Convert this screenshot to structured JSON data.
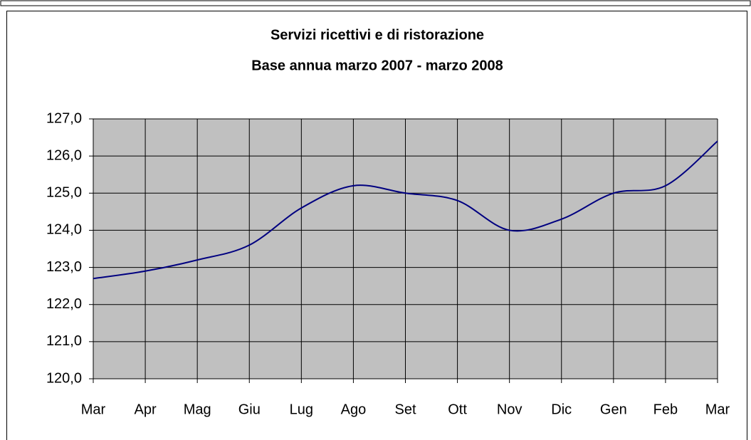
{
  "chart_data": {
    "type": "line",
    "title": "Servizi ricettivi e di ristorazione",
    "subtitle": "Base annua marzo 2007 - marzo 2008",
    "categories": [
      "Mar",
      "Apr",
      "Mag",
      "Giu",
      "Lug",
      "Ago",
      "Set",
      "Ott",
      "Nov",
      "Dic",
      "Gen",
      "Feb",
      "Mar"
    ],
    "values": [
      122.7,
      122.9,
      123.2,
      123.6,
      124.6,
      125.2,
      125.0,
      124.8,
      124.0,
      124.3,
      125.0,
      125.2,
      126.4
    ],
    "color": "#000080",
    "smooth": true,
    "ylim": [
      120,
      127
    ],
    "yticks": [
      {
        "value": 120,
        "label": "120,0"
      },
      {
        "value": 121,
        "label": "121,0"
      },
      {
        "value": 122,
        "label": "122,0"
      },
      {
        "value": 123,
        "label": "123,0"
      },
      {
        "value": 124,
        "label": "124,0"
      },
      {
        "value": 125,
        "label": "125,0"
      },
      {
        "value": 126,
        "label": "126,0"
      },
      {
        "value": 127,
        "label": "127,0"
      }
    ],
    "grid": true
  }
}
